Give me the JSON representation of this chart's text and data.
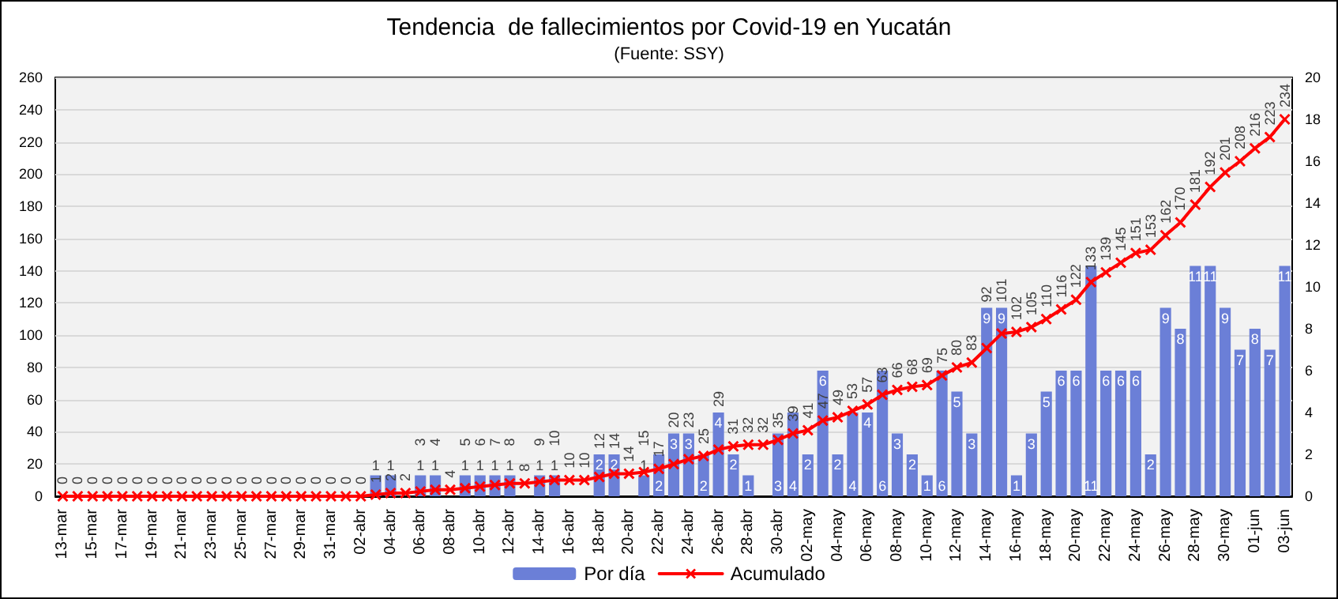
{
  "chart_data": {
    "type": "bar",
    "title": "Tendencia  de fallecimientos por Covid-19 en Yucatán",
    "subtitle": "(Fuente: SSY)",
    "categories": [
      "13-mar",
      null,
      "15-mar",
      null,
      "17-mar",
      null,
      "19-mar",
      null,
      "21-mar",
      null,
      "23-mar",
      null,
      "25-mar",
      null,
      "27-mar",
      null,
      "29-mar",
      null,
      "31-mar",
      null,
      "02-abr",
      null,
      "04-abr",
      null,
      "06-abr",
      null,
      "08-abr",
      null,
      "10-abr",
      null,
      "12-abr",
      null,
      "14-abr",
      null,
      "16-abr",
      null,
      "18-abr",
      null,
      "20-abr",
      null,
      "22-abr",
      null,
      "24-abr",
      null,
      "26-abr",
      null,
      "28-abr",
      null,
      "30-abr",
      null,
      "02-may",
      null,
      "04-may",
      null,
      "06-may",
      null,
      "08-may",
      null,
      "10-may",
      null,
      "12-may",
      null,
      "14-may",
      null,
      "16-may",
      null,
      "18-may",
      null,
      "20-may",
      null,
      "22-may",
      null,
      "24-may",
      null,
      "26-may",
      null,
      "28-may",
      null,
      "30-may",
      null,
      "01-jun",
      null,
      "03-jun"
    ],
    "series": [
      {
        "name": "Por día",
        "axis": "y2",
        "color": "#6b7fd7",
        "values": [
          0,
          0,
          0,
          0,
          0,
          0,
          0,
          0,
          0,
          0,
          0,
          0,
          0,
          0,
          0,
          0,
          0,
          0,
          0,
          0,
          0,
          1,
          1,
          0,
          1,
          1,
          0,
          1,
          1,
          1,
          1,
          0,
          1,
          1,
          0,
          0,
          2,
          2,
          0,
          1,
          2,
          3,
          3,
          2,
          4,
          2,
          1,
          0,
          3,
          4,
          2,
          6,
          2,
          4,
          4,
          6,
          3,
          2,
          1,
          6,
          5,
          3,
          9,
          9,
          1,
          3,
          5,
          6,
          6,
          11,
          6,
          6,
          6,
          2,
          9,
          8,
          11,
          11,
          9,
          7,
          8,
          7,
          11
        ],
        "value_labels": [
          null,
          null,
          null,
          null,
          null,
          null,
          null,
          null,
          null,
          null,
          null,
          null,
          null,
          null,
          null,
          null,
          null,
          null,
          null,
          null,
          null,
          "1",
          "1",
          null,
          "1",
          "1",
          null,
          "1",
          "1",
          "1",
          "1",
          null,
          "1",
          "1",
          null,
          null,
          "2",
          "2",
          null,
          "1",
          "2",
          "3",
          "3",
          "2",
          "4",
          "2",
          "1",
          null,
          "3",
          "4",
          "2",
          "6",
          "2",
          "4",
          "4",
          "6",
          "3",
          "2",
          "1",
          "6",
          "5",
          "3",
          "9",
          "9",
          "1",
          "3",
          "5",
          "6",
          "6",
          "11",
          "6",
          "6",
          "6",
          "2",
          "9",
          "8",
          "11",
          "11",
          "9",
          "7",
          "8",
          "7",
          "11"
        ]
      },
      {
        "name": "Acumulado",
        "type": "line",
        "color": "#ff0000",
        "values": [
          0,
          0,
          0,
          0,
          0,
          0,
          0,
          0,
          0,
          0,
          0,
          0,
          0,
          0,
          0,
          0,
          0,
          0,
          0,
          0,
          0,
          1,
          2,
          2,
          3,
          4,
          4,
          5,
          6,
          7,
          8,
          8,
          9,
          10,
          10,
          10,
          12,
          14,
          14,
          15,
          17,
          20,
          23,
          25,
          29,
          31,
          32,
          32,
          35,
          39,
          41,
          47,
          49,
          53,
          57,
          63,
          66,
          68,
          69,
          75,
          80,
          83,
          92,
          101,
          102,
          105,
          110,
          116,
          122,
          133,
          139,
          145,
          151,
          153,
          162,
          170,
          181,
          192,
          201,
          208,
          216,
          223,
          234
        ],
        "data_labels": true
      }
    ],
    "ylim": [
      0,
      260
    ],
    "yticks": [
      0,
      20,
      40,
      60,
      80,
      100,
      120,
      140,
      160,
      180,
      200,
      220,
      240,
      260
    ],
    "y2lim": [
      0,
      20
    ],
    "y2ticks": [
      0,
      2,
      4,
      6,
      8,
      10,
      12,
      14,
      16,
      18,
      20
    ],
    "grid": "y",
    "legend": "bottom",
    "marker": "cross",
    "line_style": "solid"
  }
}
